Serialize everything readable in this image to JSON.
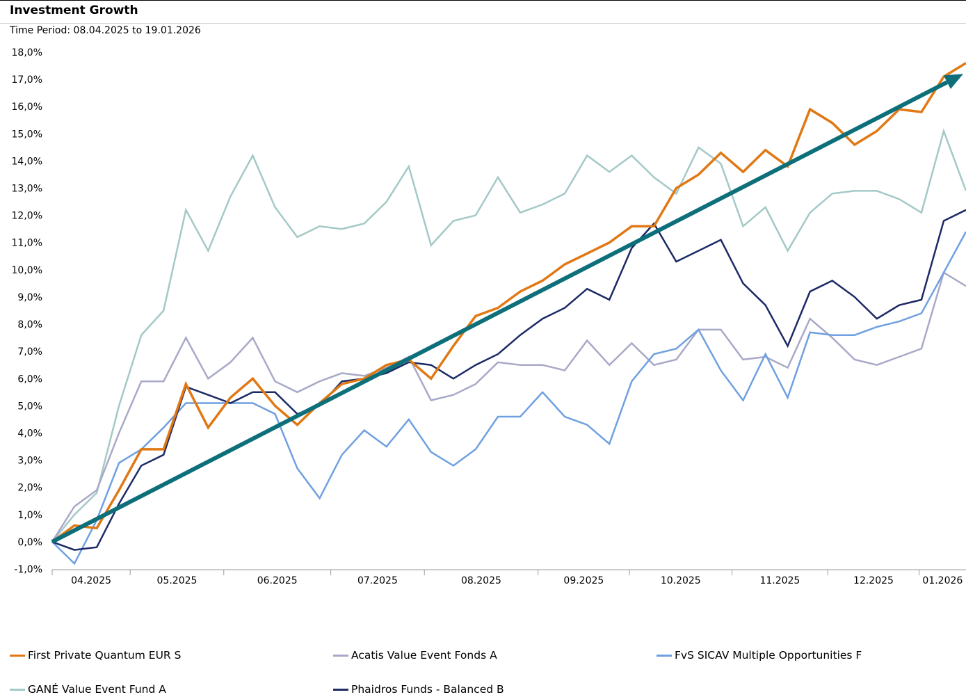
{
  "header": {
    "title": "Investment Growth",
    "subtitle": "Time Period: 08.04.2025 to 19.01.2026"
  },
  "chart_data": {
    "type": "line",
    "title": "Investment Growth",
    "subtitle": "Time Period: 08.04.2025 to 19.01.2026",
    "xlabel": "",
    "ylabel": "",
    "ylim": [
      -1.0,
      18.0
    ],
    "y_ticks": [
      -1,
      0,
      1,
      2,
      3,
      4,
      5,
      6,
      7,
      8,
      9,
      10,
      11,
      12,
      13,
      14,
      15,
      16,
      17,
      18
    ],
    "y_tick_labels": [
      "-1,0%",
      "0,0%",
      "1,0%",
      "2,0%",
      "3,0%",
      "4,0%",
      "5,0%",
      "6,0%",
      "7,0%",
      "8,0%",
      "9,0%",
      "10,0%",
      "11,0%",
      "12,0%",
      "13,0%",
      "14,0%",
      "15,0%",
      "16,0%",
      "17,0%",
      "18,0%"
    ],
    "x_tick_labels": [
      "04.2025",
      "05.2025",
      "06.2025",
      "07.2025",
      "08.2025",
      "09.2025",
      "10.2025",
      "11.2025",
      "12.2025",
      "01.2026"
    ],
    "grid": false,
    "legend_position": "bottom",
    "x_dates": [
      "08.04.2025",
      "15.04.2025",
      "22.04.2025",
      "29.04.2025",
      "06.05.2025",
      "13.05.2025",
      "20.05.2025",
      "27.05.2025",
      "03.06.2025",
      "10.06.2025",
      "17.06.2025",
      "24.06.2025",
      "01.07.2025",
      "08.07.2025",
      "15.07.2025",
      "22.07.2025",
      "29.07.2025",
      "05.08.2025",
      "12.08.2025",
      "19.08.2025",
      "26.08.2025",
      "02.09.2025",
      "09.09.2025",
      "16.09.2025",
      "23.09.2025",
      "30.09.2025",
      "07.10.2025",
      "14.10.2025",
      "21.10.2025",
      "28.10.2025",
      "04.11.2025",
      "11.11.2025",
      "18.11.2025",
      "25.11.2025",
      "02.12.2025",
      "09.12.2025",
      "16.12.2025",
      "23.12.2025",
      "30.12.2025",
      "06.01.2026",
      "13.01.2026",
      "19.01.2026"
    ],
    "series": [
      {
        "name": "GANÉ Value Event Fund A",
        "color": "#a3c9c7",
        "width": 2.5,
        "values": [
          0.0,
          1.0,
          1.8,
          5.0,
          7.6,
          8.5,
          12.2,
          10.7,
          12.7,
          14.2,
          12.3,
          11.2,
          11.6,
          11.5,
          11.7,
          12.5,
          13.8,
          10.9,
          11.8,
          12.0,
          13.4,
          12.1,
          12.4,
          12.8,
          14.2,
          13.6,
          14.2,
          13.4,
          12.8,
          14.5,
          13.9,
          11.6,
          12.3,
          10.7,
          12.1,
          12.8,
          12.9,
          12.9,
          12.6,
          12.1,
          15.1,
          12.9
        ]
      },
      {
        "name": "Acatis Value Event Fonds A",
        "color": "#a8a9c8",
        "width": 2.5,
        "values": [
          0.0,
          1.3,
          1.9,
          4.0,
          5.9,
          5.9,
          7.5,
          6.0,
          6.6,
          7.5,
          5.9,
          5.5,
          5.9,
          6.2,
          6.1,
          6.4,
          6.8,
          5.2,
          5.4,
          5.8,
          6.6,
          6.5,
          6.5,
          6.3,
          7.4,
          6.5,
          7.3,
          6.5,
          6.7,
          7.8,
          7.8,
          6.7,
          6.8,
          6.4,
          8.2,
          7.5,
          6.7,
          6.5,
          6.8,
          7.1,
          9.9,
          9.4
        ]
      },
      {
        "name": "FvS SICAV Multiple Opportunities F",
        "color": "#6fa0e0",
        "width": 2.5,
        "values": [
          0.0,
          -0.8,
          0.8,
          2.9,
          3.4,
          4.2,
          5.1,
          5.1,
          5.1,
          5.1,
          4.7,
          2.7,
          1.6,
          3.2,
          4.1,
          3.5,
          4.5,
          3.3,
          2.8,
          3.4,
          4.6,
          4.6,
          5.5,
          4.6,
          4.3,
          3.6,
          5.9,
          6.9,
          7.1,
          7.8,
          6.3,
          5.2,
          6.9,
          5.3,
          7.7,
          7.6,
          7.6,
          7.9,
          8.1,
          8.4,
          9.9,
          11.4
        ]
      },
      {
        "name": "Phaidros Funds - Balanced B",
        "color": "#1c2a66",
        "width": 2.5,
        "values": [
          0.0,
          -0.3,
          -0.2,
          1.4,
          2.8,
          3.2,
          5.7,
          5.4,
          5.1,
          5.5,
          5.5,
          4.7,
          5.0,
          5.9,
          6.0,
          6.2,
          6.6,
          6.5,
          6.0,
          6.5,
          6.9,
          7.6,
          8.2,
          8.6,
          9.3,
          8.9,
          10.8,
          11.7,
          10.3,
          10.7,
          11.1,
          9.5,
          8.7,
          7.2,
          9.2,
          9.6,
          9.0,
          8.2,
          8.7,
          8.9,
          11.8,
          12.2
        ]
      },
      {
        "name": "First Private Quantum EUR S",
        "color": "#e07814",
        "width": 3.5,
        "values": [
          0.0,
          0.6,
          0.5,
          1.9,
          3.4,
          3.4,
          5.8,
          4.2,
          5.3,
          6.0,
          5.0,
          4.3,
          5.1,
          5.8,
          6.0,
          6.5,
          6.7,
          6.0,
          7.2,
          8.3,
          8.6,
          9.2,
          9.6,
          10.2,
          10.6,
          11.0,
          11.6,
          11.6,
          13.0,
          13.5,
          14.3,
          13.6,
          14.4,
          13.8,
          15.9,
          15.4,
          14.6,
          15.1,
          15.9,
          15.8,
          17.1,
          17.6
        ]
      }
    ],
    "trend_arrow": {
      "color": "#0d6f7a",
      "from": {
        "x": "08.04.2025",
        "y": 0.0
      },
      "to": {
        "x": "19.01.2026",
        "y": 17.2
      }
    }
  },
  "legend": {
    "items": [
      {
        "label": "First Private Quantum EUR S",
        "color": "#e07814"
      },
      {
        "label": "Acatis Value Event Fonds A",
        "color": "#a8a9c8"
      },
      {
        "label": "FvS SICAV Multiple Opportunities F",
        "color": "#6fa0e0"
      },
      {
        "label": "GANÉ Value Event Fund A",
        "color": "#a3c9c7"
      },
      {
        "label": "Phaidros Funds - Balanced B",
        "color": "#1c2a66"
      }
    ]
  }
}
